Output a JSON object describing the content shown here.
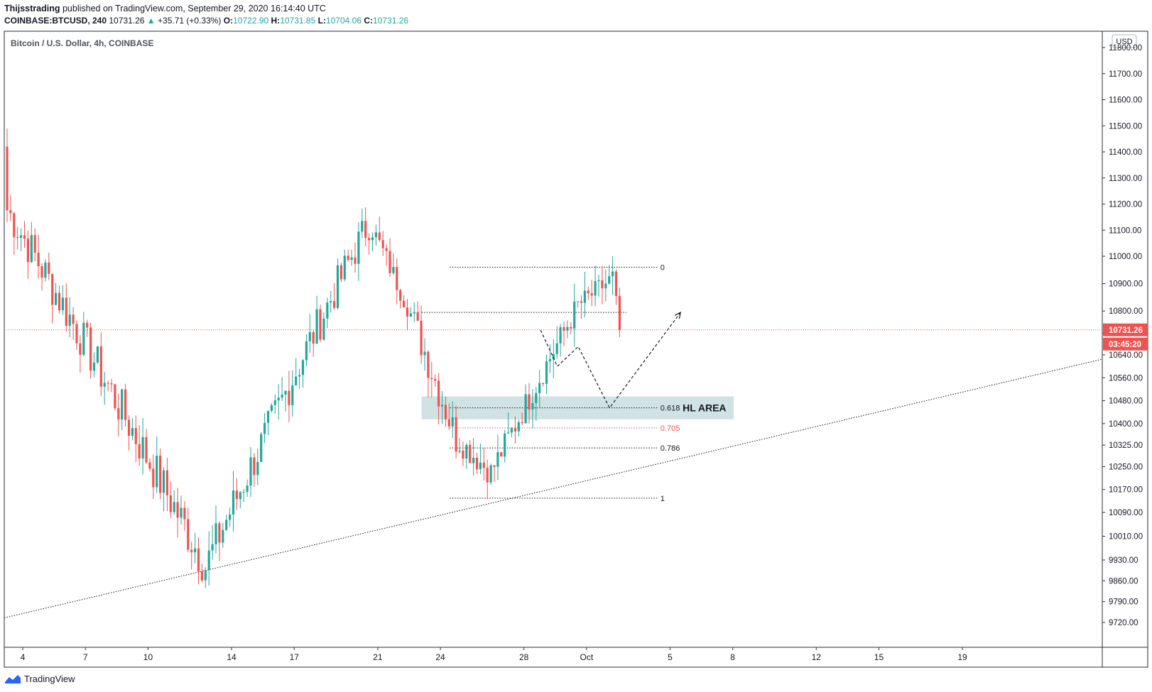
{
  "header": {
    "publisher": "Thijsstrading",
    "published_text": "published on TradingView.com, September 29, 2020 16:14:40 UTC",
    "symbol": "COINBASE:BTCUSD, 240",
    "last": "10731.26",
    "arrow": "▲",
    "change": "+35.71 (+0.33%)",
    "o_label": "O:",
    "o_value": "10722.90",
    "h_label": "H:",
    "h_value": "10731.85",
    "l_label": "L:",
    "l_value": "10704.06",
    "c_label": "C:",
    "c_value": "10731.26"
  },
  "footer": {
    "brand": "TradingView"
  },
  "colors": {
    "up": "#26a69a",
    "down": "#ef5350",
    "zone": "#b2cfd2",
    "price_tag": "#ef5350"
  },
  "chart_data": {
    "type": "candlestick",
    "title": "Bitcoin / U.S. Dollar, 4h, COINBASE",
    "currency": "USD",
    "price_scale": {
      "ylim": [
        9720,
        11860
      ],
      "ticks": [
        "11800.00",
        "11700.00",
        "11600.00",
        "11500.00",
        "11400.00",
        "11300.00",
        "11200.00",
        "11100.00",
        "11000.00",
        "10900.00",
        "10800.00",
        "10720.00",
        "10640.00",
        "10560.00",
        "10480.00",
        "10400.00",
        "10325.00",
        "10250.00",
        "10170.00",
        "10090.00",
        "10010.00",
        "9930.00",
        "9860.00",
        "9790.00",
        "9720.00"
      ]
    },
    "time_scale": {
      "ticks": [
        "4",
        "7",
        "10",
        "14",
        "17",
        "21",
        "24",
        "28",
        "Oct",
        "5",
        "8",
        "12",
        "15",
        "19"
      ]
    },
    "current_price": {
      "value": 10731.26,
      "label": "10731.26",
      "countdown": "03:45:20"
    },
    "candle_ranges": [
      {
        "start": 0,
        "end": 58,
        "from": 11200,
        "to": 9910,
        "amp": 130
      },
      {
        "start": 58,
        "end": 105,
        "from": 9910,
        "to": 11130,
        "amp": 120
      },
      {
        "start": 105,
        "end": 116,
        "from": 11130,
        "to": 10820,
        "amp": 70
      },
      {
        "start": 116,
        "end": 130,
        "from": 10820,
        "to": 10350,
        "amp": 110
      },
      {
        "start": 130,
        "end": 140,
        "from": 10350,
        "to": 10230,
        "amp": 80
      },
      {
        "start": 140,
        "end": 165,
        "from": 10230,
        "to": 10820,
        "amp": 80
      },
      {
        "start": 165,
        "end": 175,
        "from": 10820,
        "to": 10920,
        "amp": 70
      },
      {
        "start": 175,
        "end": 177,
        "from": 10920,
        "to": 10730,
        "amp": 60
      }
    ],
    "fibonacci": [
      {
        "level": "0",
        "price": 10960,
        "color": "#131722"
      },
      {
        "level": "0.618",
        "price": 10455,
        "color": "#131722"
      },
      {
        "level": "0.705",
        "price": 10385,
        "color": "#ef5350"
      },
      {
        "level": "0.786",
        "price": 10315,
        "color": "#131722"
      },
      {
        "level": "1",
        "price": 10140,
        "color": "#131722"
      }
    ],
    "resistance_line": {
      "price": 10795
    },
    "zone": {
      "label": "HL AREA",
      "from": 10415,
      "to": 10495
    },
    "trendline": {
      "from": {
        "x": "4",
        "y": 9750
      },
      "to": {
        "x": "19",
        "y": 10510
      }
    }
  }
}
